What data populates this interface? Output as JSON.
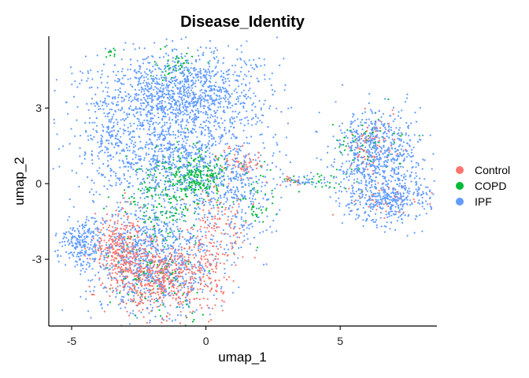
{
  "chart_data": {
    "type": "scatter",
    "title": "Disease_Identity",
    "xlabel": "umap_1",
    "ylabel": "umap_2",
    "xlim": [
      -5.85,
      8.6
    ],
    "ylim": [
      -5.65,
      5.85
    ],
    "xticks": [
      -5,
      0,
      5
    ],
    "yticks": [
      -3,
      0,
      3
    ],
    "xtick_labels": [
      "-5",
      "0",
      "5"
    ],
    "ytick_labels": [
      "-3",
      "0",
      "3"
    ],
    "legend_position": "right",
    "grid": false,
    "series": [
      {
        "name": "Control",
        "color": "#F8766D",
        "clusters": [
          {
            "cx": -3.2,
            "cy": -2.4,
            "sx": 0.45,
            "sy": 0.7,
            "n": 260
          },
          {
            "cx": -2.2,
            "cy": -3.6,
            "sx": 0.8,
            "sy": 0.7,
            "n": 420
          },
          {
            "cx": -0.8,
            "cy": -3.7,
            "sx": 0.9,
            "sy": 0.7,
            "n": 240
          },
          {
            "cx": 0.4,
            "cy": -1.8,
            "sx": 0.6,
            "sy": 1.0,
            "n": 150
          },
          {
            "cx": 1.3,
            "cy": 0.8,
            "sx": 0.4,
            "sy": 0.3,
            "n": 60
          },
          {
            "cx": 6.1,
            "cy": 1.4,
            "sx": 0.5,
            "sy": 0.6,
            "n": 70
          },
          {
            "cx": 6.8,
            "cy": -0.5,
            "sx": 0.7,
            "sy": 0.4,
            "n": 45
          },
          {
            "cx": 3.2,
            "cy": 0.1,
            "sx": 0.4,
            "sy": 0.12,
            "n": 14
          }
        ]
      },
      {
        "name": "COPD",
        "color": "#00BA38",
        "clusters": [
          {
            "cx": -0.2,
            "cy": 0.3,
            "sx": 0.55,
            "sy": 0.5,
            "n": 230
          },
          {
            "cx": -1.6,
            "cy": -0.7,
            "sx": 0.7,
            "sy": 0.9,
            "n": 170
          },
          {
            "cx": -1.3,
            "cy": 4.6,
            "sx": 0.5,
            "sy": 0.35,
            "n": 40
          },
          {
            "cx": -3.5,
            "cy": 5.1,
            "sx": 0.12,
            "sy": 0.1,
            "n": 10
          },
          {
            "cx": -1.7,
            "cy": -3.9,
            "sx": 0.9,
            "sy": 0.8,
            "n": 90
          },
          {
            "cx": 6.0,
            "cy": 1.6,
            "sx": 0.6,
            "sy": 0.6,
            "n": 60
          },
          {
            "cx": 4.6,
            "cy": 0.0,
            "sx": 0.4,
            "sy": 0.2,
            "n": 18
          },
          {
            "cx": 3.4,
            "cy": 0.1,
            "sx": 0.3,
            "sy": 0.1,
            "n": 10
          },
          {
            "cx": 1.8,
            "cy": -0.8,
            "sx": 0.4,
            "sy": 0.8,
            "n": 40
          }
        ]
      },
      {
        "name": "IPF",
        "color": "#619CFF",
        "clusters": [
          {
            "cx": -1.0,
            "cy": 3.5,
            "sx": 1.5,
            "sy": 0.9,
            "n": 1300
          },
          {
            "cx": -1.2,
            "cy": 1.0,
            "sx": 1.6,
            "sy": 1.1,
            "n": 900
          },
          {
            "cx": -2.0,
            "cy": -3.0,
            "sx": 1.2,
            "sy": 1.1,
            "n": 900
          },
          {
            "cx": -4.6,
            "cy": -2.3,
            "sx": 0.4,
            "sy": 0.5,
            "n": 220
          },
          {
            "cx": 1.3,
            "cy": -0.5,
            "sx": 0.6,
            "sy": 1.2,
            "n": 260
          },
          {
            "cx": 6.4,
            "cy": 1.3,
            "sx": 0.8,
            "sy": 0.8,
            "n": 620
          },
          {
            "cx": 6.8,
            "cy": -0.6,
            "sx": 0.9,
            "sy": 0.5,
            "n": 420
          },
          {
            "cx": 3.6,
            "cy": 0.1,
            "sx": 0.5,
            "sy": 0.12,
            "n": 45
          },
          {
            "cx": -3.7,
            "cy": 2.2,
            "sx": 0.3,
            "sy": 0.8,
            "n": 100
          }
        ]
      }
    ]
  }
}
